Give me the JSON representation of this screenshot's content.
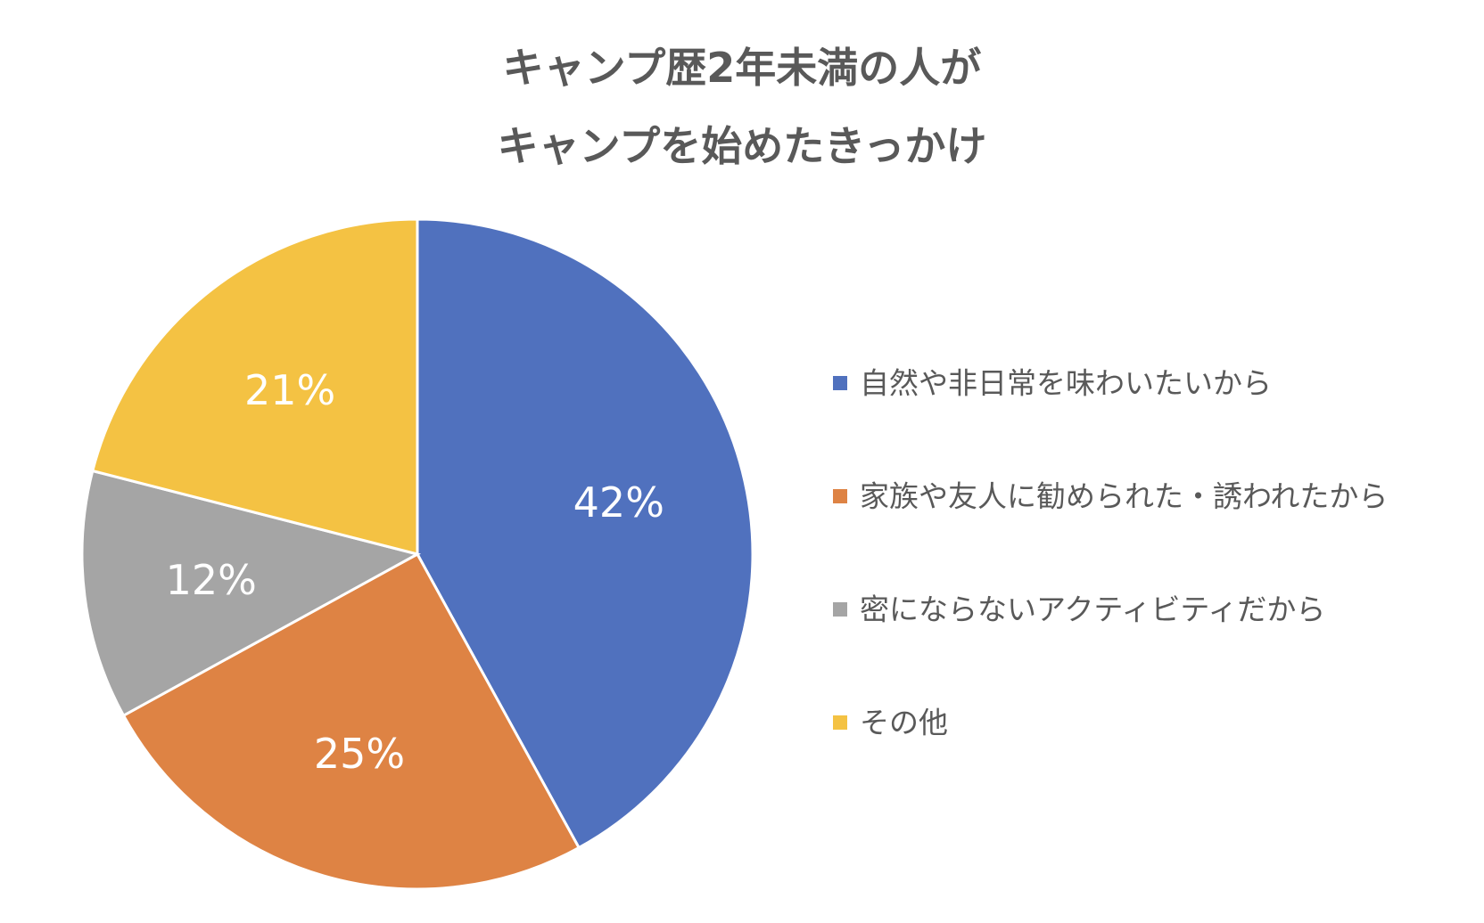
{
  "chart_data": {
    "type": "pie",
    "title_lines": [
      "キャンプ歴2年未満の人が",
      "キャンプを始めたきっかけ"
    ],
    "categories": [
      "自然や非日常を味わいたいから",
      "家族や友人に勧められた・誘われたから",
      "密にならないアクティビティだから",
      "その他"
    ],
    "values": [
      42,
      25,
      12,
      21
    ],
    "data_labels": [
      "42%",
      "25%",
      "12%",
      "21%"
    ],
    "colors": [
      "#5071BE",
      "#DE8344",
      "#A5A5A5",
      "#F4C243"
    ],
    "start_angle_deg": 0,
    "direction": "clockwise",
    "legend_position": "right"
  }
}
